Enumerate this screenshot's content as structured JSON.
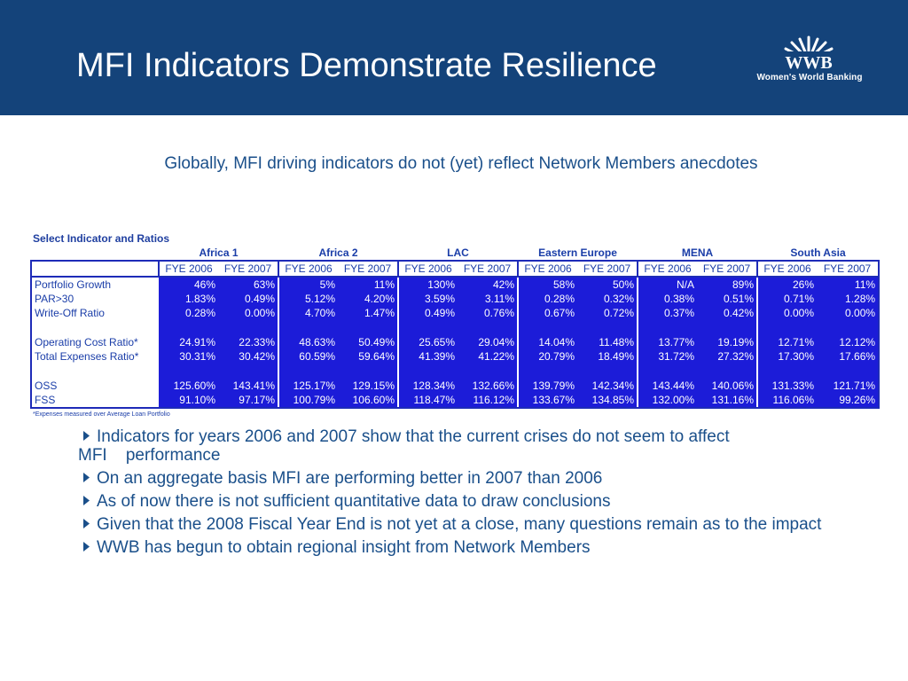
{
  "slide": {
    "title": "MFI Indicators Demonstrate Resilience",
    "subtitle": "Globally, MFI driving indicators do not (yet) reflect Network Members anecdotes"
  },
  "logo": {
    "mark": "WWB",
    "name": "Women's World Banking"
  },
  "colors": {
    "header_bg": "#14437a",
    "cell_bg": "#1c1cd8",
    "text_blue": "#1a3da8"
  },
  "table": {
    "caption": "Select Indicator and Ratios",
    "groups": [
      "Africa 1",
      "Africa 2",
      "LAC",
      "Eastern Europe",
      "MENA",
      "South Asia"
    ],
    "years": [
      "FYE 2006",
      "FYE 2007",
      "FYE 2006",
      "FYE 2007",
      "FYE 2006",
      "FYE 2007",
      "FYE 2006",
      "FYE 2007",
      "FYE 2006",
      "FYE 2007",
      "FYE 2006",
      "FYE 2007"
    ],
    "rows": [
      {
        "label": "Portfolio Growth",
        "values": [
          "46%",
          "63%",
          "5%",
          "11%",
          "130%",
          "42%",
          "58%",
          "50%",
          "N/A",
          "89%",
          "26%",
          "11%"
        ]
      },
      {
        "label": "PAR>30",
        "values": [
          "1.83%",
          "0.49%",
          "5.12%",
          "4.20%",
          "3.59%",
          "3.11%",
          "0.28%",
          "0.32%",
          "0.38%",
          "0.51%",
          "0.71%",
          "1.28%"
        ]
      },
      {
        "label": "Write-Off Ratio",
        "values": [
          "0.28%",
          "0.00%",
          "4.70%",
          "1.47%",
          "0.49%",
          "0.76%",
          "0.67%",
          "0.72%",
          "0.37%",
          "0.42%",
          "0.00%",
          "0.00%"
        ]
      },
      {
        "label": "",
        "values": [
          "",
          "",
          "",
          "",
          "",
          "",
          "",
          "",
          "",
          "",
          "",
          ""
        ]
      },
      {
        "label": "Operating Cost Ratio*",
        "values": [
          "24.91%",
          "22.33%",
          "48.63%",
          "50.49%",
          "25.65%",
          "29.04%",
          "14.04%",
          "11.48%",
          "13.77%",
          "19.19%",
          "12.71%",
          "12.12%"
        ]
      },
      {
        "label": "Total Expenses Ratio*",
        "values": [
          "30.31%",
          "30.42%",
          "60.59%",
          "59.64%",
          "41.39%",
          "41.22%",
          "20.79%",
          "18.49%",
          "31.72%",
          "27.32%",
          "17.30%",
          "17.66%"
        ]
      },
      {
        "label": "",
        "values": [
          "",
          "",
          "",
          "",
          "",
          "",
          "",
          "",
          "",
          "",
          "",
          ""
        ]
      },
      {
        "label": "OSS",
        "values": [
          "125.60%",
          "143.41%",
          "125.17%",
          "129.15%",
          "128.34%",
          "132.66%",
          "139.79%",
          "142.34%",
          "143.44%",
          "140.06%",
          "131.33%",
          "121.71%"
        ]
      },
      {
        "label": "FSS",
        "values": [
          "91.10%",
          "97.17%",
          "100.79%",
          "106.60%",
          "118.47%",
          "116.12%",
          "133.67%",
          "134.85%",
          "132.00%",
          "131.16%",
          "116.06%",
          "99.26%"
        ]
      }
    ],
    "footnote": "*Expenses measured over Average Loan Portfolio"
  },
  "bullets": [
    "Indicators for years 2006 and 2007 show that the current crises do not seem to affect MFI    performance",
    "On an aggregate basis MFI are performing better in 2007 than 2006",
    "As of now there is not sufficient quantitative data to draw conclusions",
    "Given that the 2008 Fiscal Year End is not yet at a close, many questions remain as to the impact",
    "WWB has begun to obtain regional insight from Network Members"
  ]
}
